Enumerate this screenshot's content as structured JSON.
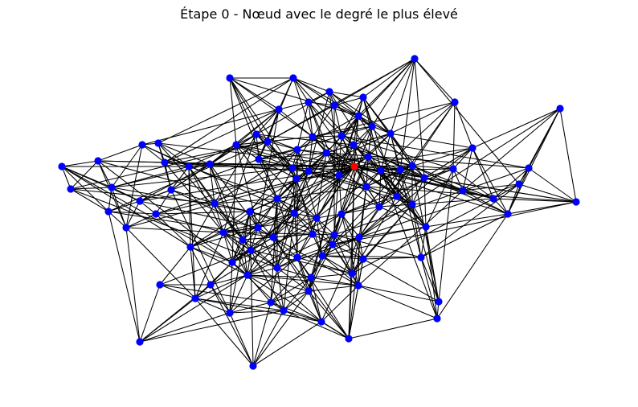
{
  "figure": {
    "title": "Étape 0 - Nœud avec le degré le plus élevé"
  },
  "graph": {
    "node_count": 96,
    "highlighted_node": "n46",
    "colors": {
      "node": "#0000ff",
      "highlighted_node": "#ff0000",
      "edge": "#000000",
      "background": "#ffffff"
    }
  }
}
